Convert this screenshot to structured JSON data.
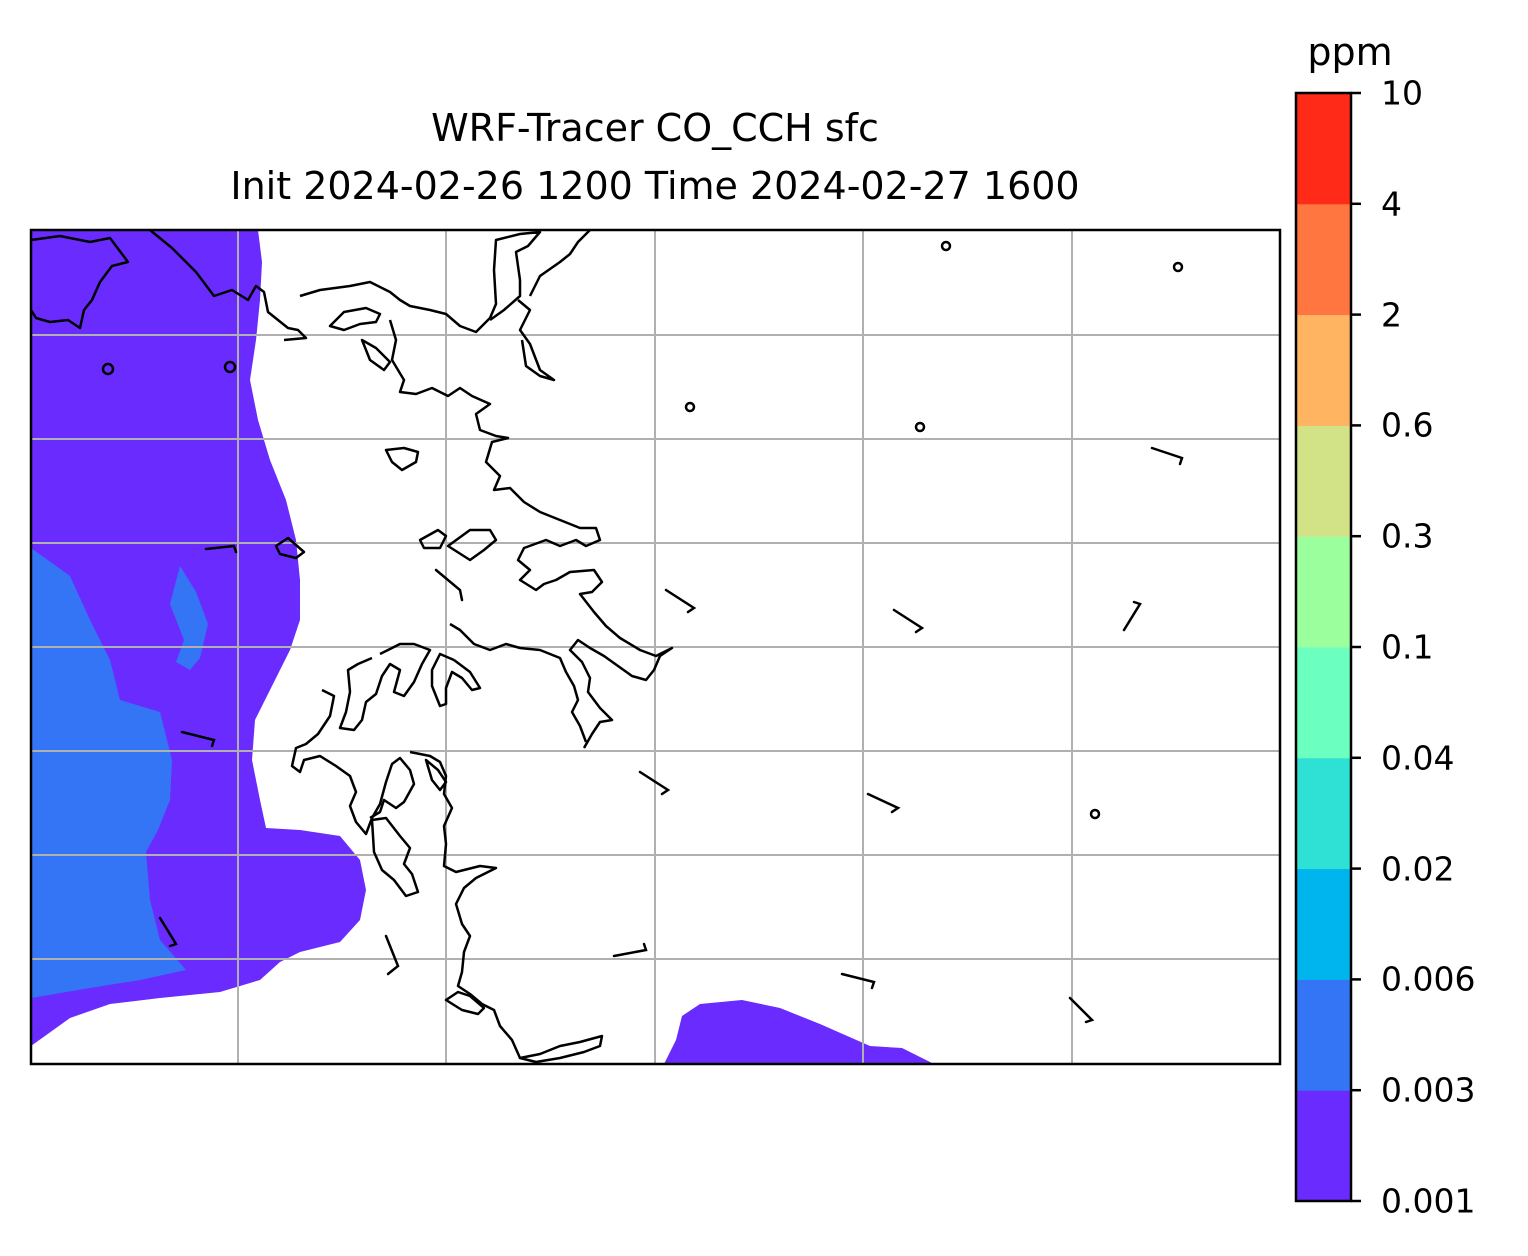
{
  "title": {
    "line1": "WRF-Tracer CO_CCH sfc",
    "line2": "Init 2024-02-26 1200 Time 2024-02-27 1600"
  },
  "colorbar": {
    "unit": "ppm",
    "levels": [
      "0.001",
      "0.003",
      "0.006",
      "0.02",
      "0.04",
      "0.1",
      "0.3",
      "0.6",
      "2",
      "4",
      "10"
    ],
    "colors": [
      "#6a2bff",
      "#3475f5",
      "#00b4ee",
      "#2fe0d4",
      "#6bffc0",
      "#9cff9e",
      "#d1e386",
      "#ffb462",
      "#ff7640",
      "#ff2b18"
    ]
  },
  "map": {
    "frame_color": "#000000",
    "gridline_color": "#b0b0b0",
    "coastline_color": "#000000",
    "wind_barbs": "black",
    "concentration_fill": "ppm contours (0.001–0.006 ppm visible)"
  }
}
